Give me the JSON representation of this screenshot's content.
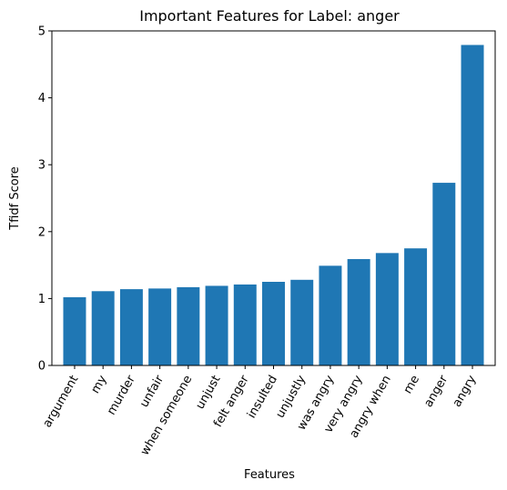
{
  "chart_data": {
    "type": "bar",
    "title": "Important Features for Label: anger",
    "xlabel": "Features",
    "ylabel": "Tfidf Score",
    "ylim": [
      0,
      5
    ],
    "yticks": [
      0,
      1,
      2,
      3,
      4,
      5
    ],
    "grid": false,
    "bar_color": "#1f77b4",
    "categories": [
      "argument",
      "my",
      "murder",
      "unfair",
      "when someone",
      "unjust",
      "felt anger",
      "insulted",
      "unjustly",
      "was angry",
      "very angry",
      "angry when",
      "me",
      "anger",
      "angry"
    ],
    "values": [
      1.02,
      1.11,
      1.14,
      1.15,
      1.17,
      1.19,
      1.21,
      1.25,
      1.28,
      1.49,
      1.59,
      1.68,
      1.75,
      2.73,
      4.79
    ]
  }
}
